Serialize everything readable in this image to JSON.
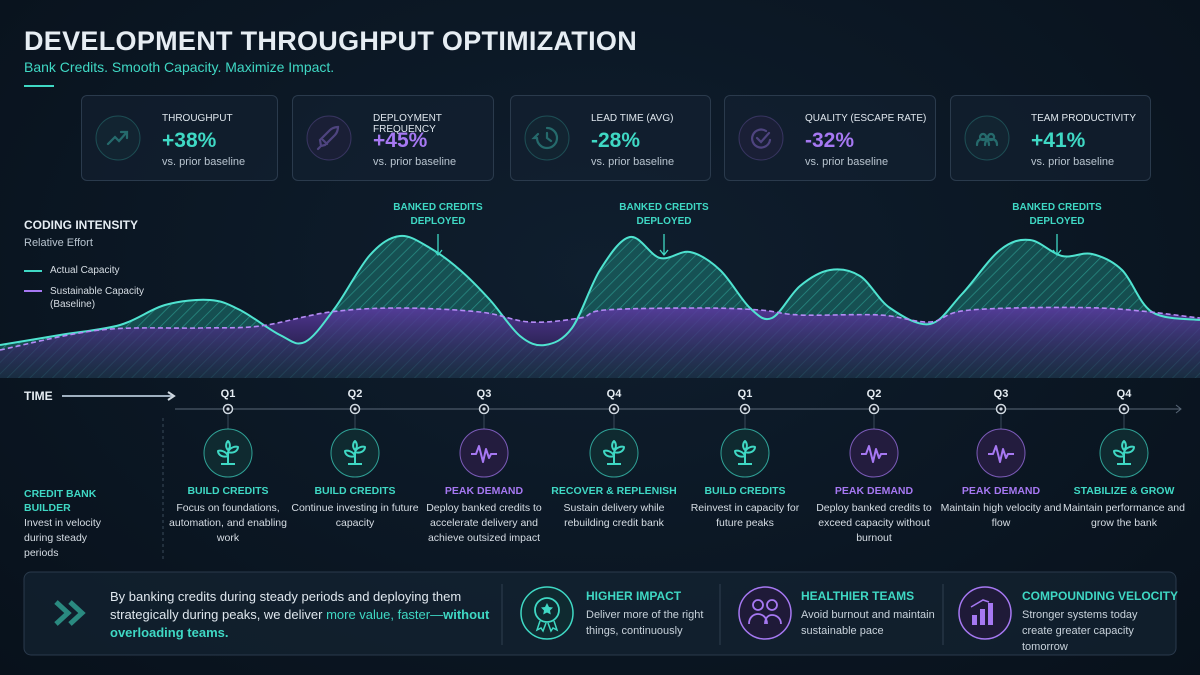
{
  "header": {
    "title": "DEVELOPMENT THROUGHPUT OPTIMIZATION",
    "subtitle": "Bank Credits. Smooth Capacity. Maximize Impact."
  },
  "kpis": [
    {
      "label": "THROUGHPUT",
      "value": "+38%",
      "note": "vs. prior baseline",
      "color": "#3fd8c4"
    },
    {
      "label": "DEPLOYMENT FREQUENCY",
      "value": "+45%",
      "note": "vs. prior baseline",
      "color": "#a678f2"
    },
    {
      "label": "LEAD TIME (AVG)",
      "value": "-28%",
      "note": "vs. prior baseline",
      "color": "#3fd8c4"
    },
    {
      "label": "QUALITY (ESCAPE RATE)",
      "value": "-32%",
      "note": "vs. prior baseline",
      "color": "#a678f2"
    },
    {
      "label": "TEAM PRODUCTIVITY",
      "value": "+41%",
      "note": "vs. prior baseline",
      "color": "#3fd8c4"
    }
  ],
  "chart": {
    "title": "CODING INTENSITY",
    "subtitle": "Relative Effort",
    "legend": [
      "Actual Capacity",
      "Sustainable Capacity (Baseline)"
    ],
    "annotations": [
      "BANKED CREDITS DEPLOYED",
      "BANKED CREDITS DEPLOYED",
      "BANKED CREDITS DEPLOYED"
    ]
  },
  "timeline": {
    "label": "TIME",
    "quarters": [
      "Q1",
      "Q2",
      "Q3",
      "Q4",
      "Q1",
      "Q2",
      "Q3",
      "Q4"
    ],
    "intro": {
      "title": "CREDIT BANK BUILDER",
      "text": "Invest in velocity during steady periods"
    },
    "phases": [
      {
        "title": "BUILD CREDITS",
        "text": "Focus on foundations, automation, and enabling work",
        "color": "#3fd8c4"
      },
      {
        "title": "BUILD CREDITS",
        "text": "Continue investing in future capacity",
        "color": "#3fd8c4"
      },
      {
        "title": "PEAK DEMAND",
        "text": "Deploy banked credits to accelerate delivery and achieve outsized impact",
        "color": "#a678f2"
      },
      {
        "title": "RECOVER & REPLENISH",
        "text": "Sustain delivery while rebuilding credit bank",
        "color": "#3fd8c4"
      },
      {
        "title": "BUILD CREDITS",
        "text": "Reinvest in capacity for future peaks",
        "color": "#3fd8c4"
      },
      {
        "title": "PEAK DEMAND",
        "text": "Deploy banked credits to exceed capacity without burnout",
        "color": "#a678f2"
      },
      {
        "title": "PEAK DEMAND",
        "text": "Maintain high velocity and flow",
        "color": "#a678f2"
      },
      {
        "title": "STABILIZE & GROW",
        "text": "Maintain performance and grow the bank",
        "color": "#3fd8c4"
      }
    ]
  },
  "footer": {
    "message": [
      "By banking credits during steady periods and deploying them strategically during peaks, we deliver ",
      "more value, faster—",
      "without overloading teams."
    ],
    "benefits": [
      {
        "title": "HIGHER IMPACT",
        "text": "Deliver more of the right things, continuously"
      },
      {
        "title": "HEALTHIER TEAMS",
        "text": "Avoid burnout and maintain sustainable pace"
      },
      {
        "title": "COMPOUNDING VELOCITY",
        "text": "Stronger systems today create greater capacity tomorrow"
      }
    ]
  }
}
